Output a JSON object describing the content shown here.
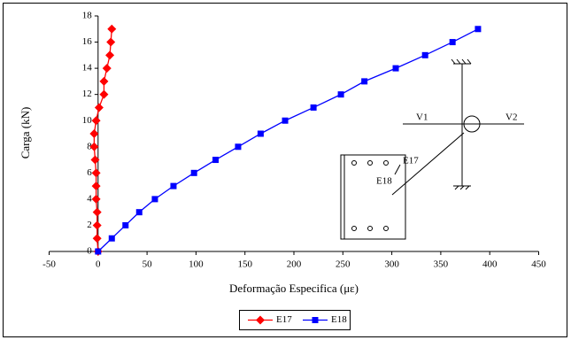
{
  "chart_data": {
    "type": "line",
    "xlabel": "Deformação Especifica (με)",
    "ylabel": "Carga (kN)",
    "xlim": [
      -50,
      450
    ],
    "xticks": [
      -50,
      0,
      50,
      100,
      150,
      200,
      250,
      300,
      350,
      400,
      450
    ],
    "ylim": [
      0,
      18
    ],
    "yticks": [
      0,
      2,
      4,
      6,
      8,
      10,
      12,
      14,
      16,
      18
    ],
    "series": [
      {
        "name": "E17",
        "color": "#ff0000",
        "marker": "diamond",
        "x": [
          0,
          -1,
          -1,
          -1,
          -2,
          -2,
          -2,
          -3,
          -4,
          -4,
          -2,
          1,
          6,
          6,
          9,
          12,
          13,
          14
        ],
        "values": [
          0,
          1,
          2,
          3,
          4,
          5,
          6,
          7,
          8,
          9,
          10,
          11,
          12,
          13,
          14,
          15,
          16,
          17
        ]
      },
      {
        "name": "E18",
        "color": "#0000ff",
        "marker": "square",
        "x": [
          0,
          14,
          28,
          42,
          58,
          77,
          98,
          120,
          143,
          166,
          191,
          220,
          248,
          272,
          304,
          334,
          362,
          388
        ],
        "values": [
          0,
          1,
          2,
          3,
          4,
          5,
          6,
          7,
          8,
          9,
          10,
          11,
          12,
          13,
          14,
          15,
          16,
          17
        ]
      }
    ],
    "annotations": [
      "V1",
      "V2",
      "E17",
      "E18"
    ]
  }
}
